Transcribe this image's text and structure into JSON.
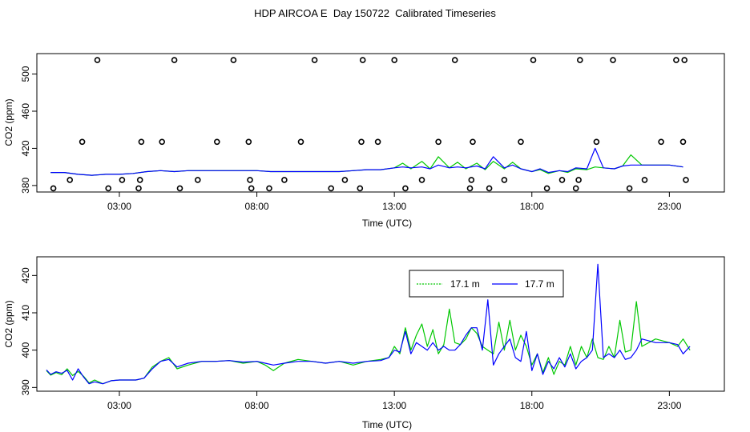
{
  "title": "HDP AIRCOA E  Day 150722  Calibrated Timeseries",
  "colors": {
    "axis": "#000000",
    "marker": "#000000",
    "series_a": "#00c800",
    "series_b": "#0000ff",
    "background": "#ffffff"
  },
  "chart_data": [
    {
      "type": "scatter",
      "panel": "top",
      "xlabel": "Time (UTC)",
      "ylabel": "CO2 (ppm)",
      "xlim": [
        0.0,
        25.0
      ],
      "ylim": [
        373,
        522
      ],
      "xticks": [
        3,
        8,
        13,
        18,
        23
      ],
      "xtick_labels": [
        "03:00",
        "08:00",
        "13:00",
        "18:00",
        "23:00"
      ],
      "yticks": [
        380,
        420,
        460,
        500
      ],
      "ytick_labels": [
        "380",
        "420",
        "460",
        "500"
      ],
      "line_series": [
        {
          "name": "17.1 m",
          "color": "#00c800",
          "x": [
            0.5,
            1.0,
            1.5,
            2.0,
            2.5,
            3.0,
            3.5,
            4.0,
            4.5,
            5.0,
            5.5,
            6.0,
            6.5,
            7.0,
            7.5,
            8.0,
            8.5,
            9.0,
            9.5,
            10.0,
            10.5,
            11.0,
            11.5,
            12.0,
            12.5,
            13.0,
            13.3,
            13.6,
            14.0,
            14.3,
            14.6,
            15.0,
            15.3,
            15.6,
            16.0,
            16.3,
            16.6,
            17.0,
            17.3,
            17.6,
            18.0,
            18.3,
            18.6,
            19.0,
            19.3,
            19.6,
            20.0,
            20.3,
            20.6,
            21.0,
            21.3,
            21.6,
            22.0,
            22.5,
            23.0,
            23.5
          ],
          "y": [
            394,
            394,
            392,
            391,
            392,
            392,
            393,
            395,
            396,
            395,
            396,
            396,
            396,
            396,
            396,
            396,
            395,
            395,
            395,
            395,
            395,
            395,
            396,
            397,
            397,
            399,
            404,
            398,
            406,
            398,
            411,
            399,
            405,
            398,
            404,
            397,
            406,
            398,
            405,
            398,
            395,
            397,
            393,
            396,
            394,
            398,
            397,
            400,
            399,
            398,
            401,
            413,
            402,
            402,
            402,
            400
          ]
        },
        {
          "name": "17.7 m",
          "color": "#0000ff",
          "x": [
            0.5,
            1.0,
            1.5,
            2.0,
            2.5,
            3.0,
            3.5,
            4.0,
            4.5,
            5.0,
            5.5,
            6.0,
            6.5,
            7.0,
            7.5,
            8.0,
            8.5,
            9.0,
            9.5,
            10.0,
            10.5,
            11.0,
            11.5,
            12.0,
            12.5,
            13.0,
            13.3,
            13.6,
            14.0,
            14.3,
            14.6,
            15.0,
            15.3,
            15.6,
            16.0,
            16.3,
            16.6,
            17.0,
            17.3,
            17.6,
            18.0,
            18.3,
            18.6,
            19.0,
            19.3,
            19.6,
            20.0,
            20.3,
            20.6,
            21.0,
            21.3,
            21.6,
            22.0,
            22.5,
            23.0,
            23.5
          ],
          "y": [
            394,
            394,
            392,
            391,
            392,
            392,
            393,
            395,
            396,
            395,
            396,
            396,
            396,
            396,
            396,
            396,
            395,
            395,
            395,
            395,
            395,
            395,
            396,
            397,
            397,
            399,
            400,
            399,
            400,
            398,
            402,
            399,
            400,
            399,
            401,
            398,
            411,
            399,
            402,
            398,
            395,
            398,
            394,
            396,
            395,
            399,
            398,
            420,
            399,
            398,
            401,
            402,
            402,
            402,
            402,
            400
          ]
        }
      ],
      "points": {
        "x": [
          0.6,
          1.2,
          1.65,
          2.2,
          2.6,
          3.1,
          3.7,
          3.75,
          3.8,
          4.55,
          5.0,
          5.2,
          5.85,
          6.55,
          7.15,
          7.7,
          7.75,
          7.8,
          8.45,
          9.0,
          9.6,
          10.1,
          10.7,
          11.2,
          11.75,
          11.8,
          11.85,
          12.4,
          13.0,
          13.4,
          14.0,
          14.6,
          15.2,
          15.75,
          15.8,
          15.85,
          16.45,
          17.0,
          17.6,
          18.05,
          18.55,
          19.1,
          19.6,
          19.7,
          19.75,
          20.35,
          20.95,
          21.55,
          22.1,
          22.7,
          23.25,
          23.5,
          23.55,
          23.6
        ],
        "y": [
          377,
          386,
          427,
          515,
          377,
          386,
          377,
          386,
          427,
          427,
          515,
          377,
          386,
          427,
          515,
          427,
          386,
          377,
          377,
          386,
          427,
          515,
          377,
          386,
          377,
          427,
          515,
          427,
          515,
          377,
          386,
          427,
          515,
          377,
          386,
          427,
          377,
          386,
          427,
          515,
          377,
          386,
          377,
          386,
          515,
          427,
          515,
          377,
          386,
          427,
          515,
          427,
          515,
          386
        ]
      }
    },
    {
      "type": "line",
      "panel": "bottom",
      "xlabel": "Time (UTC)",
      "ylabel": "CO2 (ppm)",
      "xlim": [
        0.0,
        25.0
      ],
      "ylim": [
        389,
        425
      ],
      "xticks": [
        3,
        8,
        13,
        18,
        23
      ],
      "xtick_labels": [
        "03:00",
        "08:00",
        "13:00",
        "18:00",
        "23:00"
      ],
      "yticks": [
        390,
        400,
        410,
        420
      ],
      "ytick_labels": [
        "390",
        "400",
        "410",
        "420"
      ],
      "legend_position": "top-right",
      "series": [
        {
          "name": "17.1 m",
          "color": "#00c800",
          "x": [
            0.35,
            0.5,
            0.7,
            0.9,
            1.1,
            1.3,
            1.5,
            1.7,
            1.9,
            2.1,
            2.4,
            2.7,
            3.0,
            3.3,
            3.6,
            3.9,
            4.2,
            4.5,
            4.8,
            5.1,
            5.5,
            6.0,
            6.5,
            7.0,
            7.5,
            8.0,
            8.3,
            8.6,
            9.0,
            9.5,
            10.0,
            10.5,
            11.0,
            11.5,
            12.0,
            12.5,
            12.8,
            13.0,
            13.2,
            13.4,
            13.6,
            13.8,
            14.0,
            14.2,
            14.4,
            14.6,
            14.8,
            15.0,
            15.2,
            15.4,
            15.6,
            15.8,
            16.0,
            16.2,
            16.4,
            16.6,
            16.8,
            17.0,
            17.2,
            17.4,
            17.6,
            17.8,
            18.0,
            18.2,
            18.4,
            18.6,
            18.8,
            19.0,
            19.2,
            19.4,
            19.6,
            19.8,
            20.0,
            20.2,
            20.4,
            20.6,
            20.8,
            21.0,
            21.2,
            21.4,
            21.6,
            21.8,
            22.0,
            22.5,
            23.0,
            23.3,
            23.5,
            23.75
          ],
          "y": [
            394.5,
            393.3,
            394.0,
            393.4,
            395.0,
            393.2,
            394.3,
            393.0,
            391.2,
            392.0,
            391.0,
            391.8,
            392.0,
            392.0,
            392.0,
            392.5,
            395.5,
            397.0,
            398.0,
            395.0,
            396.0,
            397.0,
            397.0,
            397.2,
            396.5,
            397.0,
            396.0,
            394.5,
            396.5,
            397.5,
            397.0,
            396.5,
            397.0,
            396.0,
            397.0,
            397.5,
            398.0,
            401.0,
            399.0,
            406.0,
            400.0,
            404.0,
            407.0,
            401.0,
            405.5,
            399.0,
            401.5,
            411.0,
            402.0,
            401.5,
            403.0,
            406.0,
            404.5,
            401.0,
            400.0,
            399.0,
            407.5,
            400.0,
            408.0,
            400.0,
            404.0,
            401.0,
            396.0,
            399.0,
            394.0,
            398.0,
            393.5,
            397.0,
            396.0,
            401.0,
            396.0,
            401.0,
            398.0,
            403.0,
            398.0,
            397.5,
            401.0,
            398.0,
            408.0,
            399.5,
            400.0,
            413.0,
            401.0,
            403.0,
            402.0,
            401.0,
            403.0,
            400.0
          ]
        },
        {
          "name": "17.7 m",
          "color": "#0000ff",
          "x": [
            0.35,
            0.5,
            0.7,
            0.9,
            1.1,
            1.3,
            1.5,
            1.7,
            1.9,
            2.1,
            2.4,
            2.7,
            3.0,
            3.3,
            3.6,
            3.9,
            4.2,
            4.5,
            4.8,
            5.1,
            5.5,
            6.0,
            6.5,
            7.0,
            7.5,
            8.0,
            8.3,
            8.6,
            9.0,
            9.5,
            10.0,
            10.5,
            11.0,
            11.5,
            12.0,
            12.5,
            12.8,
            13.0,
            13.2,
            13.4,
            13.6,
            13.8,
            14.0,
            14.2,
            14.4,
            14.6,
            14.8,
            15.0,
            15.2,
            15.4,
            15.6,
            15.8,
            16.0,
            16.2,
            16.4,
            16.6,
            16.8,
            17.0,
            17.2,
            17.4,
            17.6,
            17.8,
            18.0,
            18.2,
            18.4,
            18.6,
            18.8,
            19.0,
            19.2,
            19.4,
            19.6,
            19.8,
            20.0,
            20.2,
            20.4,
            20.6,
            20.8,
            21.0,
            21.2,
            21.4,
            21.6,
            21.8,
            22.0,
            22.5,
            23.0,
            23.3,
            23.5,
            23.75
          ],
          "y": [
            394.7,
            393.5,
            394.2,
            393.8,
            394.6,
            392.0,
            395.0,
            392.8,
            391.0,
            391.5,
            391.0,
            391.8,
            392.0,
            392.0,
            392.0,
            392.5,
            395.0,
            397.0,
            397.5,
            395.5,
            396.5,
            397.0,
            397.0,
            397.2,
            396.8,
            397.0,
            396.5,
            396.0,
            396.5,
            397.0,
            397.0,
            396.5,
            397.0,
            396.5,
            397.0,
            397.2,
            398.0,
            400.0,
            399.5,
            405.0,
            399.0,
            402.0,
            401.0,
            400.0,
            402.0,
            400.0,
            401.0,
            400.0,
            400.0,
            401.5,
            404.0,
            406.0,
            406.0,
            400.0,
            413.5,
            396.0,
            399.0,
            401.0,
            403.0,
            398.0,
            397.0,
            405.0,
            394.5,
            399.0,
            393.5,
            397.0,
            395.0,
            398.0,
            395.5,
            399.0,
            395.0,
            397.0,
            398.0,
            400.0,
            423.0,
            398.0,
            399.0,
            398.0,
            400.0,
            397.5,
            398.0,
            400.0,
            403.0,
            402.0,
            402.0,
            401.5,
            399.0,
            401.0
          ]
        }
      ]
    }
  ]
}
